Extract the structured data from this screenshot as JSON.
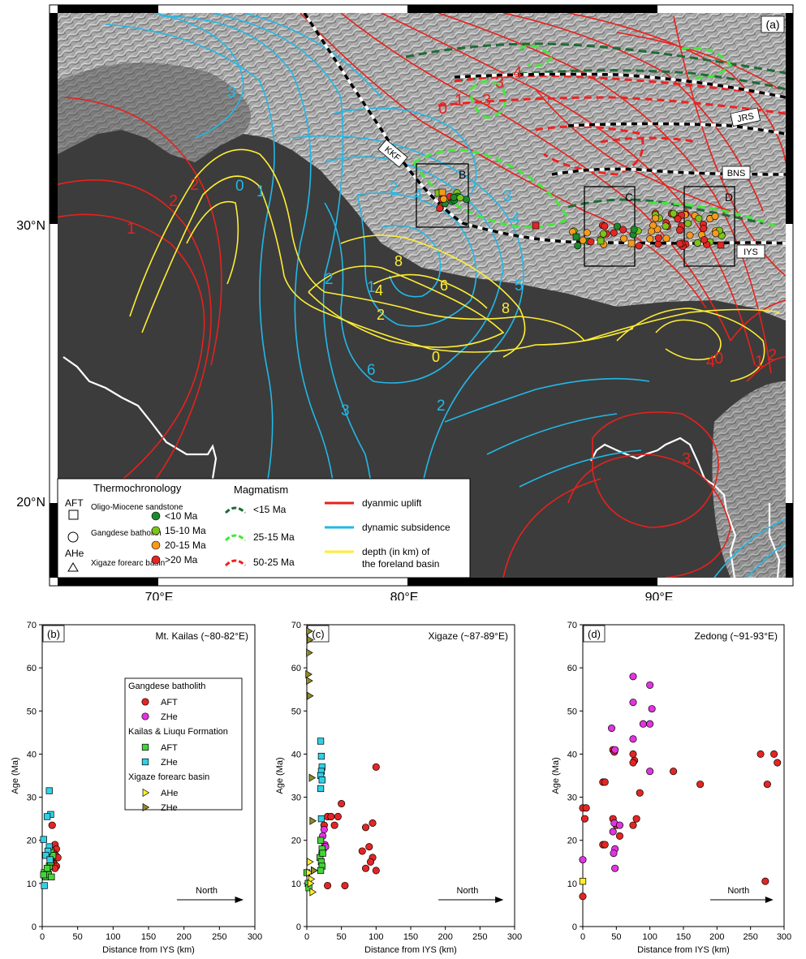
{
  "colors": {
    "uplift": "#e8211c",
    "subsidence": "#22b8e6",
    "foreland": "#ffee33",
    "young": "#1b8a2b",
    "mid": "#7cc417",
    "old": "#f59a1c",
    "oldest": "#e32624",
    "zhe_pink": "#e234e0",
    "zhe_cyan": "#2fd1e6",
    "aft_green": "#45d43a",
    "ahe_yellow": "#ffef2a",
    "zhe_olive": "#8e8a28",
    "mag_lt15": "#1e6b34",
    "mag_25_15": "#44e83a",
    "mag_50_25": "#ee2222"
  },
  "map": {
    "panel_label": "(a)",
    "lon_ticks": [
      "70°E",
      "80°E",
      "90°E"
    ],
    "lat_ticks": [
      "30°N",
      "20°N"
    ],
    "faults": [
      "JRS",
      "BNS",
      "IYS",
      "KKF"
    ],
    "boxes": [
      "B",
      "C",
      "D"
    ],
    "uplift_contour_labels": [
      "3",
      "4",
      "0",
      "1",
      "2",
      "2",
      "1",
      "3",
      "4",
      "0",
      "1",
      "2",
      "3"
    ],
    "subsidence_contour_labels": [
      "3",
      "0",
      "1",
      "2",
      "3",
      "4",
      "5",
      "6",
      "3",
      "2",
      "4",
      "2",
      "1"
    ],
    "foreland_labels": [
      "8",
      "6",
      "4",
      "8",
      "2",
      "0"
    ],
    "legend": {
      "thermo_title": "Thermochronology",
      "aft_label": "AFT",
      "ahe_label": "AHe",
      "symbols": [
        {
          "symbol": "square",
          "label": "Oligo-Miocene sandstone"
        },
        {
          "symbol": "circle",
          "label": "Gangdese batholith"
        },
        {
          "symbol": "triangle",
          "label": "Xigaze forearc basin"
        }
      ],
      "ages": [
        {
          "label": "<10 Ma",
          "color": "#1b8a2b"
        },
        {
          "label": "15-10 Ma",
          "color": "#7cc417"
        },
        {
          "label": "20-15 Ma",
          "color": "#f59a1c"
        },
        {
          "label": ">20 Ma",
          "color": "#e32624"
        }
      ],
      "magmatism_title": "Magmatism",
      "magmatism": [
        {
          "label": "<15 Ma",
          "color": "#1e6b34"
        },
        {
          "label": "25-15 Ma",
          "color": "#44e83a"
        },
        {
          "label": "50-25 Ma",
          "color": "#ee2222"
        }
      ],
      "lines": [
        {
          "label": "dyanmic uplift",
          "color": "#e8211c"
        },
        {
          "label": "dynamic subsidence",
          "color": "#22b8e6"
        },
        {
          "label": "depth (in km) of the foreland basin",
          "color": "#ffee33"
        }
      ]
    }
  },
  "chart_data": [
    {
      "type": "scatter",
      "panel_label": "(b)",
      "title": "Mt. Kailas (~80-82°E)",
      "xlabel": "Distance from IYS (km)",
      "ylabel": "Age (Ma)",
      "xlim": [
        0,
        300
      ],
      "ylim": [
        0,
        70
      ],
      "xticks": [
        0,
        50,
        100,
        150,
        200,
        250,
        300
      ],
      "yticks": [
        0,
        10,
        20,
        30,
        40,
        50,
        60,
        70
      ],
      "arrow_label": "North",
      "legend": [
        {
          "group": "Gangdese batholith"
        },
        {
          "label": "AFT",
          "marker": "circle",
          "color": "#e32624"
        },
        {
          "label": "ZHe",
          "marker": "circle",
          "color": "#e234e0"
        },
        {
          "group": "Kailas & Liuqu Formation"
        },
        {
          "label": "AFT",
          "marker": "square",
          "color": "#45d43a"
        },
        {
          "label": "ZHe",
          "marker": "square",
          "color": "#2fd1e6"
        },
        {
          "group": "Xigaze forearc basin"
        },
        {
          "label": "AHe",
          "marker": "triangle",
          "color": "#ffef2a"
        },
        {
          "label": "ZHe",
          "marker": "triangle",
          "color": "#8e8a28"
        }
      ],
      "series": [
        {
          "name": "Gangdese batholith AFT",
          "marker": "circle",
          "color": "#e32624",
          "points": [
            [
              14,
              23.5
            ],
            [
              18,
              19
            ],
            [
              20,
              18
            ],
            [
              16,
              17
            ],
            [
              19,
              16.5
            ],
            [
              15,
              15.5
            ],
            [
              22,
              16
            ],
            [
              17,
              14.5
            ],
            [
              20,
              14
            ],
            [
              18,
              13.5
            ]
          ]
        },
        {
          "name": "Kailas & Liuqu Formation AFT",
          "marker": "square",
          "color": "#45d43a",
          "points": [
            [
              3,
              12.5
            ],
            [
              5,
              11.5
            ],
            [
              8,
              13
            ],
            [
              10,
              14
            ],
            [
              12,
              15
            ],
            [
              11,
              16
            ],
            [
              12,
              17.5
            ],
            [
              9,
              12
            ],
            [
              13,
              11.5
            ],
            [
              7,
              13.5
            ],
            [
              15,
              16.5
            ],
            [
              2,
              12
            ]
          ]
        },
        {
          "name": "Kailas & Liuqu Formation ZHe",
          "marker": "square",
          "color": "#2fd1e6",
          "points": [
            [
              10,
              31.5
            ],
            [
              12,
              26
            ],
            [
              7,
              25.5
            ],
            [
              2,
              20.2
            ],
            [
              10,
              18.5
            ],
            [
              8,
              17.5
            ],
            [
              5,
              16.5
            ],
            [
              11,
              15.5
            ],
            [
              3,
              9.5
            ]
          ]
        }
      ]
    },
    {
      "type": "scatter",
      "panel_label": "(c)",
      "title": "Xigaze (~87-89°E)",
      "xlabel": "Distance from IYS (km)",
      "ylabel": "Age (Ma)",
      "xlim": [
        0,
        300
      ],
      "ylim": [
        0,
        70
      ],
      "xticks": [
        0,
        50,
        100,
        150,
        200,
        250,
        300
      ],
      "yticks": [
        0,
        10,
        20,
        30,
        40,
        50,
        60,
        70
      ],
      "arrow_label": "North",
      "series": [
        {
          "name": "Gangdese batholith AFT",
          "marker": "circle",
          "color": "#e32624",
          "points": [
            [
              100,
              37
            ],
            [
              50,
              28.5
            ],
            [
              30,
              25.5
            ],
            [
              35,
              25.5
            ],
            [
              45,
              25.5
            ],
            [
              40,
              23.5
            ],
            [
              25,
              23.5
            ],
            [
              85,
              23
            ],
            [
              95,
              24
            ],
            [
              80,
              17.5
            ],
            [
              90,
              18.5
            ],
            [
              95,
              16
            ],
            [
              92,
              15
            ],
            [
              85,
              13.5
            ],
            [
              100,
              13
            ],
            [
              55,
              9.5
            ],
            [
              30,
              9.5
            ]
          ]
        },
        {
          "name": "Gangdese batholith ZHe",
          "marker": "circle",
          "color": "#e234e0",
          "points": [
            [
              25,
              22.5
            ],
            [
              23,
              21
            ],
            [
              26,
              19
            ],
            [
              24,
              18
            ],
            [
              22,
              17
            ],
            [
              27,
              18.5
            ]
          ]
        },
        {
          "name": "Kailas & Liuqu Formation AFT",
          "marker": "square",
          "color": "#45d43a",
          "points": [
            [
              0,
              12.5
            ],
            [
              2,
              10
            ],
            [
              3,
              9
            ],
            [
              20,
              20
            ],
            [
              22,
              18
            ],
            [
              19,
              16
            ],
            [
              21,
              15
            ],
            [
              22,
              14
            ],
            [
              20,
              13
            ],
            [
              23,
              17
            ]
          ]
        },
        {
          "name": "Kailas & Liuqu Formation ZHe",
          "marker": "square",
          "color": "#2fd1e6",
          "points": [
            [
              20,
              43
            ],
            [
              21,
              39.5
            ],
            [
              22,
              37
            ],
            [
              21,
              36
            ],
            [
              20,
              35
            ],
            [
              22,
              34
            ],
            [
              20,
              32
            ],
            [
              21,
              25
            ]
          ]
        },
        {
          "name": "Xigaze forearc basin AHe",
          "marker": "triangle",
          "color": "#ffef2a",
          "points": [
            [
              4,
              15
            ],
            [
              3,
              12.5
            ],
            [
              6,
              11
            ],
            [
              8,
              8
            ],
            [
              10,
              13
            ],
            [
              5,
              10
            ]
          ]
        },
        {
          "name": "Xigaze forearc basin ZHe",
          "marker": "triangle",
          "color": "#8e8a28",
          "points": [
            [
              3,
              68.5
            ],
            [
              4,
              66.5
            ],
            [
              3,
              63.5
            ],
            [
              2,
              58.5
            ],
            [
              3,
              57
            ],
            [
              4,
              53.5
            ],
            [
              7,
              34.5
            ],
            [
              8,
              24.5
            ],
            [
              10,
              13
            ]
          ]
        }
      ]
    },
    {
      "type": "scatter",
      "panel_label": "(d)",
      "title": "Zedong (~91-93°E)",
      "xlabel": "Distance from IYS (km)",
      "ylabel": "Age (Ma)",
      "xlim": [
        0,
        300
      ],
      "ylim": [
        0,
        70
      ],
      "xticks": [
        0,
        50,
        100,
        150,
        200,
        250,
        300
      ],
      "yticks": [
        0,
        10,
        20,
        30,
        40,
        50,
        60,
        70
      ],
      "arrow_label": "North",
      "series": [
        {
          "name": "Gangdese batholith AFT",
          "marker": "circle",
          "color": "#e32624",
          "points": [
            [
              0,
              27.5
            ],
            [
              5,
              27.5
            ],
            [
              3,
              25
            ],
            [
              0,
              7
            ],
            [
              30,
              33.5
            ],
            [
              33,
              33.5
            ],
            [
              30,
              19
            ],
            [
              33,
              19
            ],
            [
              45,
              41
            ],
            [
              47,
              40.5
            ],
            [
              45,
              25
            ],
            [
              50,
              23.5
            ],
            [
              55,
              21
            ],
            [
              75,
              40
            ],
            [
              77,
              38.5
            ],
            [
              75,
              38
            ],
            [
              85,
              31
            ],
            [
              80,
              25
            ],
            [
              75,
              23.5
            ],
            [
              135,
              36
            ],
            [
              175,
              33
            ],
            [
              265,
              40
            ],
            [
              285,
              40
            ],
            [
              290,
              38
            ],
            [
              275,
              33
            ],
            [
              272,
              10.5
            ]
          ]
        },
        {
          "name": "Gangdese batholith ZHe",
          "marker": "circle",
          "color": "#e234e0",
          "points": [
            [
              75,
              58
            ],
            [
              100,
              56
            ],
            [
              75,
              52
            ],
            [
              103,
              50.5
            ],
            [
              90,
              47
            ],
            [
              100,
              47
            ],
            [
              43,
              46
            ],
            [
              75,
              43.5
            ],
            [
              48,
              41
            ],
            [
              100,
              36
            ],
            [
              45,
              22
            ],
            [
              47,
              24
            ],
            [
              48,
              18
            ],
            [
              46,
              17
            ],
            [
              48,
              13.5
            ],
            [
              55,
              23.5
            ],
            [
              0,
              15.5
            ]
          ]
        },
        {
          "name": "Xigaze forearc basin AHe",
          "marker": "square",
          "color": "#ffef2a",
          "points": [
            [
              0,
              10.5
            ]
          ]
        }
      ]
    }
  ]
}
